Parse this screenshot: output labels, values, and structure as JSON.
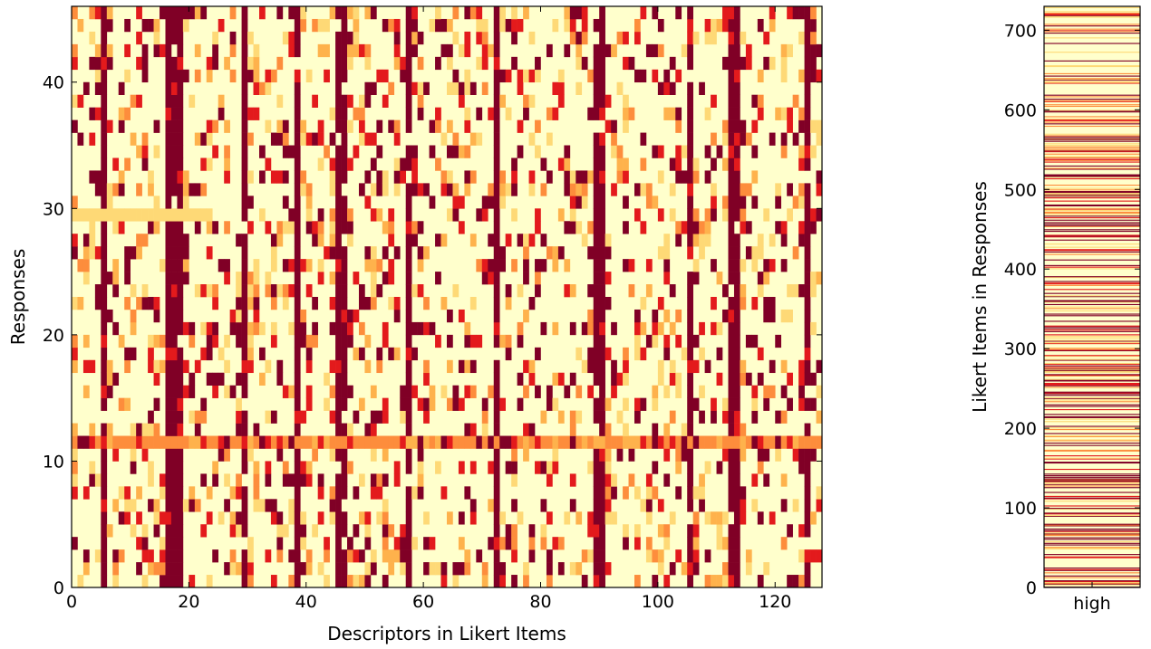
{
  "chart_data": [
    {
      "type": "heatmap",
      "xlabel": "Descriptors in Likert Items",
      "ylabel": "Responses",
      "xlim": [
        0,
        128
      ],
      "ylim": [
        0,
        46
      ],
      "xticks": [
        0,
        20,
        40,
        60,
        80,
        100,
        120
      ],
      "yticks": [
        0,
        10,
        20,
        30,
        40
      ],
      "n_columns": 128,
      "n_rows": 46,
      "colormap": [
        "#ffffcc",
        "#ffeda0",
        "#fed976",
        "#feb24c",
        "#fd8d3c",
        "#fc4e2a",
        "#e31a1c",
        "#800026"
      ],
      "dark_columns": [
        5,
        16,
        17,
        18,
        29,
        38,
        45,
        46,
        57,
        72,
        89,
        90,
        105,
        112,
        113,
        125
      ],
      "highlight_rows": [
        11
      ],
      "pale_band": {
        "row": 29,
        "x_from": 0,
        "x_to": 24
      }
    },
    {
      "type": "heatmap",
      "xlabel": "",
      "ylabel": "Likert Items in Responses",
      "ylim": [
        0,
        730
      ],
      "yticks": [
        0,
        100,
        200,
        300,
        400,
        500,
        600,
        700
      ],
      "xtick_labels": [
        "high"
      ],
      "n_rows": 730
    }
  ]
}
